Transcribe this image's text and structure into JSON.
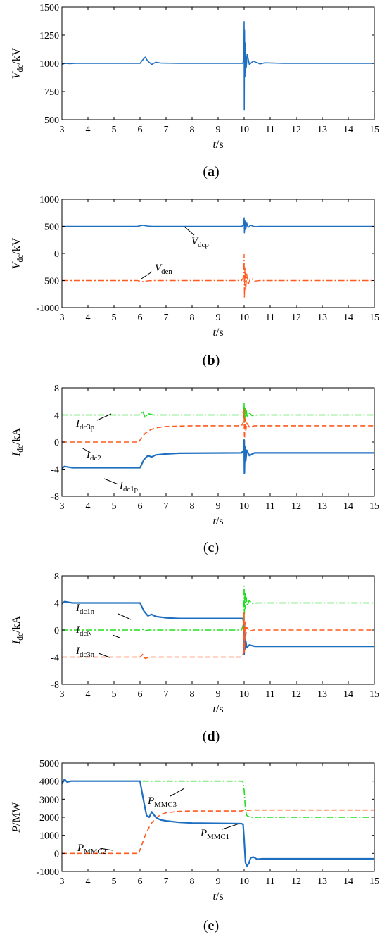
{
  "chart_data": [
    {
      "id": "a",
      "type": "line",
      "caption": "a",
      "xlabel": {
        "var": "t",
        "unit": "/s"
      },
      "ylabel": {
        "var": "V",
        "sub": "dc",
        "unit": "/kV"
      },
      "xlim": [
        3,
        15
      ],
      "ylim": [
        500,
        1500
      ],
      "xticks": [
        "3",
        "4",
        "5",
        "6",
        "7",
        "8",
        "9",
        "10",
        "11",
        "12",
        "13",
        "14",
        "15"
      ],
      "yticks": [
        "500",
        "750",
        "1000",
        "1250",
        "1500"
      ],
      "series": [
        {
          "color": "#1f6fc0",
          "style": "solid",
          "width": 1.6,
          "x": [
            3.0,
            3.1,
            3.3,
            3.5,
            4.0,
            5.0,
            6.0,
            6.1,
            6.2,
            6.3,
            6.45,
            6.6,
            6.8,
            7.5,
            9.0,
            9.95,
            9.98,
            9.995,
            10.0,
            10.005,
            10.015,
            10.03,
            10.05,
            10.08,
            10.12,
            10.2,
            10.35,
            10.6,
            10.8,
            11.5,
            15.0
          ],
          "y": [
            990,
            1000,
            997,
            1000,
            1000,
            1000,
            1000,
            1030,
            1055,
            1020,
            990,
            1010,
            1003,
            1000,
            1000,
            1000,
            1040,
            1200,
            1370,
            590,
            1300,
            880,
            1180,
            960,
            1080,
            990,
            1020,
            995,
            1005,
            1000,
            1000
          ]
        }
      ]
    },
    {
      "id": "b",
      "type": "line",
      "caption": "b",
      "xlabel": {
        "var": "t",
        "unit": "/s"
      },
      "ylabel": {
        "var": "V",
        "sub": "dc",
        "unit": "/kV"
      },
      "xlim": [
        3,
        15
      ],
      "ylim": [
        -1000,
        1000
      ],
      "xticks": [
        "3",
        "4",
        "5",
        "6",
        "7",
        "8",
        "9",
        "10",
        "11",
        "12",
        "13",
        "14",
        "15"
      ],
      "yticks": [
        "-1000",
        "-500",
        "0",
        "500",
        "1000"
      ],
      "series": [
        {
          "name": "V",
          "sub": "dcp",
          "color": "#1f6fc0",
          "style": "solid",
          "width": 1.6,
          "x": [
            3.0,
            5.9,
            6.1,
            6.3,
            6.5,
            9.9,
            9.98,
            10.0,
            10.01,
            10.03,
            10.06,
            10.1,
            10.15,
            10.25,
            10.4,
            10.6,
            15.0
          ],
          "y": [
            500,
            500,
            520,
            505,
            500,
            500,
            520,
            660,
            380,
            600,
            440,
            560,
            480,
            520,
            495,
            500,
            500
          ]
        },
        {
          "name": "V",
          "sub": "den",
          "color": "#ff5a1f",
          "style": "dashdot",
          "width": 1.4,
          "x": [
            3.0,
            5.9,
            6.1,
            6.3,
            6.5,
            9.9,
            9.98,
            10.0,
            10.01,
            10.03,
            10.06,
            10.1,
            10.15,
            10.25,
            10.4,
            10.6,
            15.0
          ],
          "y": [
            -500,
            -500,
            -520,
            -505,
            -500,
            -500,
            -440,
            -20,
            -830,
            -250,
            -700,
            -380,
            -580,
            -450,
            -510,
            -500,
            -500
          ]
        }
      ]
    },
    {
      "id": "c",
      "type": "line",
      "caption": "c",
      "xlabel": {
        "var": "t",
        "unit": "/s"
      },
      "ylabel": {
        "var": "I",
        "sub": "dc",
        "unit": "/kA"
      },
      "xlim": [
        3,
        15
      ],
      "ylim": [
        -8,
        8
      ],
      "xticks": [
        "3",
        "4",
        "5",
        "6",
        "7",
        "8",
        "9",
        "10",
        "11",
        "12",
        "13",
        "14",
        "15"
      ],
      "yticks": [
        "-8",
        "-4",
        "0",
        "4",
        "8"
      ],
      "series": [
        {
          "name": "I",
          "sub": "dc3p",
          "color": "#22dd22",
          "style": "dashdot",
          "width": 1.6,
          "x": [
            3.0,
            6.0,
            6.1,
            6.2,
            6.3,
            6.5,
            9.9,
            9.98,
            10.0,
            10.01,
            10.03,
            10.05,
            10.08,
            10.12,
            10.2,
            10.3,
            10.5,
            15.0
          ],
          "y": [
            4,
            4,
            4.6,
            3.6,
            4.2,
            4,
            4,
            4.6,
            5.8,
            2.8,
            5.2,
            3.2,
            4.8,
            3.6,
            4.3,
            3.9,
            4,
            4
          ]
        },
        {
          "name": "I",
          "sub": "dc2",
          "color": "#ff5a1f",
          "style": "dashed",
          "width": 1.6,
          "x": [
            3.0,
            5.95,
            6.05,
            6.2,
            6.4,
            6.6,
            7.0,
            7.5,
            8.0,
            9.9,
            9.98,
            10.0,
            10.01,
            10.03,
            10.06,
            10.1,
            10.2,
            10.4,
            15.0
          ],
          "y": [
            0,
            0,
            0.6,
            1.3,
            1.8,
            2.1,
            2.3,
            2.35,
            2.4,
            2.4,
            3.0,
            4.8,
            -0.6,
            3.4,
            1.6,
            2.8,
            2.2,
            2.4,
            2.4
          ]
        },
        {
          "name": "I",
          "sub": "dc1p",
          "color": "#1f6fc0",
          "style": "solid",
          "width": 2.2,
          "x": [
            3.0,
            3.1,
            3.4,
            6.0,
            6.15,
            6.3,
            6.45,
            6.6,
            7.0,
            7.5,
            9.9,
            9.98,
            10.0,
            10.01,
            10.03,
            10.06,
            10.1,
            10.2,
            10.4,
            15.0
          ],
          "y": [
            -3.9,
            -3.6,
            -3.8,
            -3.8,
            -2.6,
            -2.0,
            -2.2,
            -1.9,
            -1.75,
            -1.65,
            -1.6,
            -1.2,
            0.3,
            -4.6,
            -0.6,
            -2.8,
            -1.2,
            -2.0,
            -1.6,
            -1.6
          ]
        }
      ]
    },
    {
      "id": "d",
      "type": "line",
      "caption": "d",
      "xlabel": {
        "var": "t",
        "unit": "/s"
      },
      "ylabel": {
        "var": "I",
        "sub": "dc",
        "unit": "/kA"
      },
      "xlim": [
        3,
        15
      ],
      "ylim": [
        -8,
        8
      ],
      "xticks": [
        "3",
        "4",
        "5",
        "6",
        "7",
        "8",
        "9",
        "10",
        "11",
        "12",
        "13",
        "14",
        "15"
      ],
      "yticks": [
        "-8",
        "-4",
        "0",
        "4",
        "8"
      ],
      "series": [
        {
          "name": "I",
          "sub": "dc1n",
          "color": "#1f6fc0",
          "style": "solid",
          "width": 2.2,
          "x": [
            3.0,
            3.1,
            3.4,
            6.0,
            6.15,
            6.3,
            6.45,
            6.6,
            7.0,
            7.5,
            9.9,
            9.95,
            9.98,
            10.0,
            10.01,
            10.03,
            10.06,
            10.1,
            10.2,
            10.4,
            15.0
          ],
          "y": [
            3.9,
            4.2,
            4.0,
            4.0,
            2.8,
            2.1,
            2.3,
            2.0,
            1.8,
            1.7,
            1.7,
            1.7,
            1.2,
            -3.6,
            0.8,
            -2.8,
            -1.6,
            -2.6,
            -2.2,
            -2.4,
            -2.4
          ]
        },
        {
          "name": "I",
          "sub": "dcN",
          "color": "#22dd22",
          "style": "dashdot",
          "width": 1.6,
          "x": [
            3.0,
            6.0,
            6.1,
            6.2,
            6.35,
            9.9,
            9.98,
            10.0,
            10.01,
            10.03,
            10.05,
            10.08,
            10.12,
            10.2,
            10.3,
            10.5,
            15.0
          ],
          "y": [
            0,
            0,
            0.1,
            -0.1,
            0,
            0,
            1.0,
            6.5,
            2.4,
            5.6,
            3.2,
            4.8,
            3.6,
            4.4,
            3.9,
            4.0,
            4.0
          ]
        },
        {
          "name": "I",
          "sub": "dc3n",
          "color": "#ff5a1f",
          "style": "dashed",
          "width": 1.6,
          "x": [
            3.0,
            6.0,
            6.1,
            6.2,
            6.35,
            9.9,
            9.98,
            10.0,
            10.01,
            10.03,
            10.06,
            10.1,
            10.2,
            10.35,
            15.0
          ],
          "y": [
            -4,
            -4,
            -3.6,
            -4.2,
            -4,
            -4,
            -3.4,
            2.6,
            -3.2,
            1.2,
            -0.8,
            0.4,
            -0.2,
            0,
            0
          ]
        }
      ]
    },
    {
      "id": "e",
      "type": "line",
      "caption": "e",
      "xlabel": {
        "var": "t",
        "unit": "/s"
      },
      "ylabel": {
        "var": "P",
        "sub": "",
        "unit": "/MW"
      },
      "xlim": [
        3,
        15
      ],
      "ylim": [
        -1000,
        5000
      ],
      "xticks": [
        "3",
        "4",
        "5",
        "6",
        "7",
        "8",
        "9",
        "10",
        "11",
        "12",
        "13",
        "14",
        "15"
      ],
      "yticks": [
        "-1000",
        "0",
        "1000",
        "2000",
        "3000",
        "4000",
        "5000"
      ],
      "series": [
        {
          "name": "P",
          "sub": "MMC3",
          "color": "#22dd22",
          "style": "dashdot",
          "width": 1.6,
          "x": [
            3.0,
            3.1,
            3.2,
            3.35,
            3.5,
            9.95,
            10.0,
            10.05,
            10.1,
            10.15,
            10.25,
            10.4,
            15.0
          ],
          "y": [
            3900,
            4100,
            3950,
            4000,
            4000,
            4000,
            3500,
            2400,
            2100,
            2050,
            2000,
            2000,
            2000
          ]
        },
        {
          "name": "P",
          "sub": "MMC2",
          "color": "#ff5a1f",
          "style": "dashed",
          "width": 1.6,
          "x": [
            3.0,
            5.95,
            6.05,
            6.2,
            6.4,
            6.6,
            6.8,
            7.0,
            7.5,
            8.0,
            9.9,
            10.0,
            10.1,
            10.3,
            15.0
          ],
          "y": [
            0,
            0,
            400,
            1000,
            1600,
            1950,
            2150,
            2250,
            2330,
            2350,
            2350,
            2400,
            2380,
            2400,
            2400
          ]
        },
        {
          "name": "P",
          "sub": "MMC1",
          "color": "#1f6fc0",
          "style": "solid",
          "width": 2.2,
          "x": [
            3.0,
            3.1,
            3.2,
            3.35,
            3.5,
            6.0,
            6.1,
            6.25,
            6.35,
            6.45,
            6.55,
            6.65,
            6.8,
            7.0,
            7.5,
            8.0,
            9.9,
            9.96,
            10.0,
            10.05,
            10.1,
            10.18,
            10.25,
            10.35,
            10.5,
            10.7,
            15.0
          ],
          "y": [
            3850,
            4100,
            3950,
            4000,
            4000,
            4000,
            3200,
            2100,
            2000,
            2300,
            2100,
            1950,
            1850,
            1800,
            1720,
            1680,
            1650,
            1600,
            800,
            -500,
            -700,
            -550,
            -250,
            -200,
            -320,
            -300,
            -300
          ]
        }
      ]
    }
  ],
  "labels": {
    "a": [],
    "b": [
      {
        "series": 0,
        "text_var": "V",
        "text_sub": "dcp"
      },
      {
        "series": 1,
        "text_var": "V",
        "text_sub": "den"
      }
    ],
    "c": [
      {
        "series": 0,
        "text_var": "I",
        "text_sub": "dc3p"
      },
      {
        "series": 1,
        "text_var": "I",
        "text_sub": "dc2"
      },
      {
        "series": 2,
        "text_var": "I",
        "text_sub": "dc1p"
      }
    ],
    "d": [
      {
        "series": 0,
        "text_var": "I",
        "text_sub": "dc1n"
      },
      {
        "series": 1,
        "text_var": "I",
        "text_sub": "dcN"
      },
      {
        "series": 2,
        "text_var": "I",
        "text_sub": "dc3n"
      }
    ],
    "e": [
      {
        "series": 0,
        "text_var": "P",
        "text_sub": "MMC3"
      },
      {
        "series": 1,
        "text_var": "P",
        "text_sub": "MMC2"
      },
      {
        "series": 2,
        "text_var": "P",
        "text_sub": "MMC1"
      }
    ]
  }
}
